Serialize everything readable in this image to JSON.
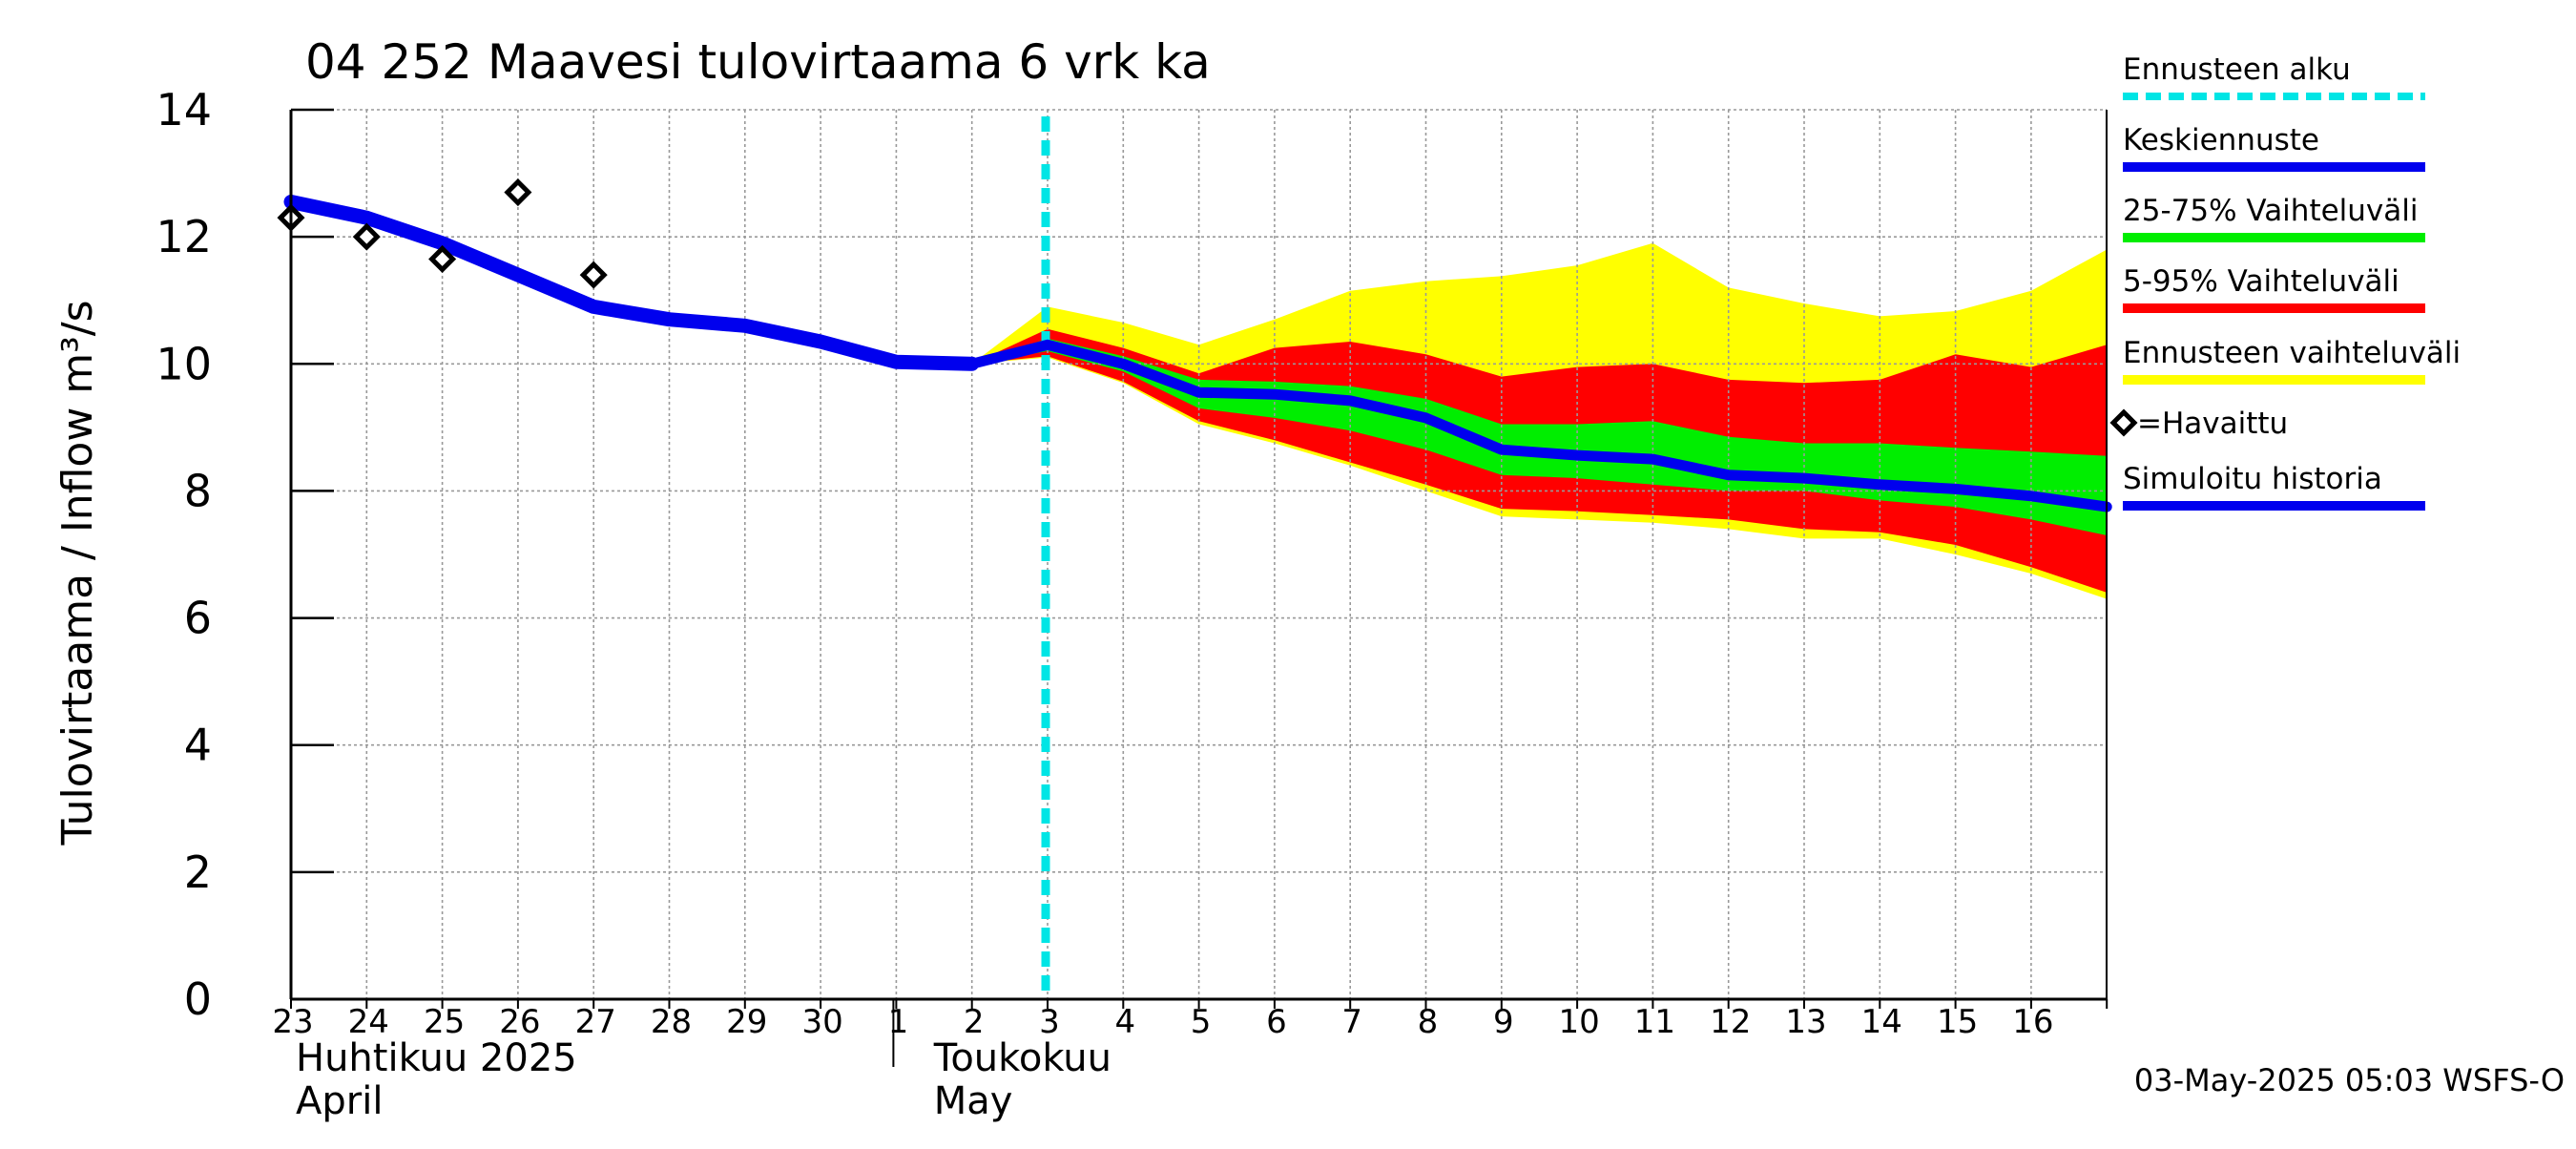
{
  "chart_data": {
    "type": "area",
    "title": "04 252 Maavesi tulovirtaama 6 vrk ka",
    "ylabel": "Tulovirtaama / Inflow   m³/s",
    "ylim": [
      0,
      14
    ],
    "yticks": [
      0,
      2,
      4,
      6,
      8,
      10,
      12,
      14
    ],
    "grid": true,
    "legend_placement": "right",
    "x_day_labels": [
      "23",
      "24",
      "25",
      "26",
      "27",
      "28",
      "29",
      "30",
      "1",
      "2",
      "3",
      "4",
      "5",
      "6",
      "7",
      "8",
      "9",
      "10",
      "11",
      "12",
      "13",
      "14",
      "15",
      "16"
    ],
    "x_month_labels": [
      {
        "fi": "Huhtikuu  2025",
        "en": "April"
      },
      {
        "fi": "Toukokuu",
        "en": "May"
      }
    ],
    "x_start": "2025-04-23",
    "x_end": "2025-05-16",
    "forecast_start": "2025-05-03",
    "legend": [
      {
        "label": "Ennusteen alku",
        "color": "#00e5e5",
        "style": "dashed"
      },
      {
        "label": "Keskiennuste",
        "color": "#0000ee",
        "style": "line"
      },
      {
        "label": "25-75% Vaihteluväli",
        "color": "#00ee00",
        "style": "line"
      },
      {
        "label": "5-95% Vaihteluväli",
        "color": "#ff0000",
        "style": "line"
      },
      {
        "label": "Ennusteen vaihteluväli",
        "color": "#ffff00",
        "style": "line"
      },
      {
        "label": "=Havaittu",
        "color": "#000000",
        "style": "diamond"
      },
      {
        "label": "Simuloitu historia",
        "color": "#0000ee",
        "style": "line"
      }
    ],
    "series": [
      {
        "name": "Simuloitu historia",
        "color": "#0000ee",
        "points": [
          [
            "2025-04-23",
            12.55
          ],
          [
            "2025-04-24",
            12.3
          ],
          [
            "2025-04-25",
            11.9
          ],
          [
            "2025-04-26",
            11.4
          ],
          [
            "2025-04-27",
            10.9
          ],
          [
            "2025-04-28",
            10.7
          ],
          [
            "2025-04-29",
            10.6
          ],
          [
            "2025-04-30",
            10.35
          ],
          [
            "2025-05-01",
            10.03
          ],
          [
            "2025-05-02",
            10.0
          ]
        ]
      },
      {
        "name": "Keskiennuste",
        "color": "#0000ee",
        "points": [
          [
            "2025-05-02",
            10.0
          ],
          [
            "2025-05-03",
            10.3
          ],
          [
            "2025-05-04",
            10.0
          ],
          [
            "2025-05-05",
            9.55
          ],
          [
            "2025-05-06",
            9.52
          ],
          [
            "2025-05-07",
            9.42
          ],
          [
            "2025-05-08",
            9.15
          ],
          [
            "2025-05-09",
            8.65
          ],
          [
            "2025-05-10",
            8.56
          ],
          [
            "2025-05-11",
            8.5
          ],
          [
            "2025-05-12",
            8.25
          ],
          [
            "2025-05-13",
            8.2
          ],
          [
            "2025-05-14",
            8.1
          ],
          [
            "2025-05-15",
            8.03
          ],
          [
            "2025-05-16",
            7.92
          ],
          [
            "2025-05-17",
            7.75
          ]
        ]
      },
      {
        "name": "Havaittu",
        "color": "#000000",
        "points": [
          [
            "2025-04-23",
            12.3
          ],
          [
            "2025-04-24",
            12.0
          ],
          [
            "2025-04-25",
            11.65
          ],
          [
            "2025-04-26",
            12.7
          ],
          [
            "2025-04-27",
            11.4
          ]
        ]
      }
    ],
    "bands": [
      {
        "name": "Ennusteen vaihteluväli",
        "color": "#ffff00",
        "x": [
          "2025-05-02",
          "2025-05-03",
          "2025-05-04",
          "2025-05-05",
          "2025-05-06",
          "2025-05-07",
          "2025-05-08",
          "2025-05-09",
          "2025-05-10",
          "2025-05-11",
          "2025-05-12",
          "2025-05-13",
          "2025-05-14",
          "2025-05-15",
          "2025-05-16",
          "2025-05-17"
        ],
        "upper": [
          10.0,
          10.9,
          10.65,
          10.3,
          10.7,
          11.15,
          11.3,
          11.38,
          11.55,
          11.9,
          11.2,
          10.95,
          10.75,
          10.83,
          11.15,
          11.8
        ],
        "lower": [
          10.0,
          10.1,
          9.7,
          9.05,
          8.75,
          8.4,
          8.0,
          7.6,
          7.55,
          7.5,
          7.4,
          7.25,
          7.25,
          7.0,
          6.7,
          6.3
        ]
      },
      {
        "name": "5-95% Vaihteluväli",
        "color": "#ff0000",
        "x": [
          "2025-05-02",
          "2025-05-03",
          "2025-05-04",
          "2025-05-05",
          "2025-05-06",
          "2025-05-07",
          "2025-05-08",
          "2025-05-09",
          "2025-05-10",
          "2025-05-11",
          "2025-05-12",
          "2025-05-13",
          "2025-05-14",
          "2025-05-15",
          "2025-05-16",
          "2025-05-17"
        ],
        "upper": [
          10.0,
          10.55,
          10.25,
          9.85,
          10.25,
          10.35,
          10.15,
          9.8,
          9.95,
          10.0,
          9.75,
          9.7,
          9.75,
          10.15,
          9.95,
          10.3
        ],
        "lower": [
          10.0,
          10.12,
          9.72,
          9.1,
          8.8,
          8.45,
          8.1,
          7.72,
          7.68,
          7.62,
          7.55,
          7.4,
          7.35,
          7.15,
          6.8,
          6.4
        ]
      },
      {
        "name": "25-75% Vaihteluväli",
        "color": "#00ee00",
        "x": [
          "2025-05-02",
          "2025-05-03",
          "2025-05-04",
          "2025-05-05",
          "2025-05-06",
          "2025-05-07",
          "2025-05-08",
          "2025-05-09",
          "2025-05-10",
          "2025-05-11",
          "2025-05-12",
          "2025-05-13",
          "2025-05-14",
          "2025-05-15",
          "2025-05-16",
          "2025-05-17"
        ],
        "upper": [
          10.0,
          10.4,
          10.12,
          9.75,
          9.72,
          9.65,
          9.45,
          9.05,
          9.05,
          9.1,
          8.85,
          8.75,
          8.75,
          8.68,
          8.62,
          8.55
        ],
        "lower": [
          10.0,
          10.2,
          9.88,
          9.3,
          9.15,
          8.95,
          8.65,
          8.25,
          8.2,
          8.1,
          8.0,
          8.0,
          7.85,
          7.75,
          7.55,
          7.3
        ]
      }
    ]
  },
  "timestamp": "03-May-2025 05:03 WSFS-O"
}
